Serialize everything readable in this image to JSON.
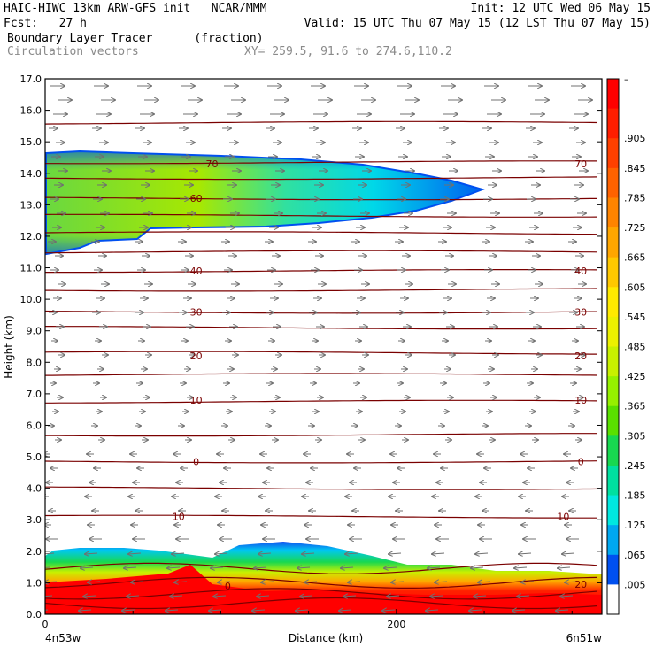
{
  "header": {
    "model_line": "HAIC-HIWC 13km ARW-GFS init   NCAR/MMM",
    "init_line": "Init: 12 UTC Wed 06 May 15",
    "fcst_line": "Fcst:   27 h",
    "valid_line": "Valid: 15 UTC Thu 07 May 15 (12 LST Thu 07 May 15)",
    "field_line": "Boundary Layer Tracer      (fraction)",
    "vector_line": "Circulation vectors",
    "xy_line": "XY= 259.5, 91.6 to 274.6,110.2"
  },
  "chart_data": {
    "type": "heatmap",
    "ylabel": "Height (km)",
    "xlabel": "Distance (km)",
    "x_left_label": "4n53w",
    "x_right_label": "6n51w",
    "xlim": [
      0,
      317
    ],
    "ylim": [
      0,
      17
    ],
    "x_ticks": [
      {
        "value": 0,
        "label": "0"
      },
      {
        "value": 200,
        "label": "200"
      }
    ],
    "y_ticks": [
      "0.0",
      "1.0",
      "2.0",
      "3.0",
      "4.0",
      "5.0",
      "6.0",
      "7.0",
      "8.0",
      "9.0",
      "10.0",
      "11.0",
      "12.0",
      "13.0",
      "14.0",
      "15.0",
      "16.0",
      "17.0"
    ],
    "colorbar": {
      "labels": [
        "–",
        ".905",
        ".845",
        ".785",
        ".725",
        ".665",
        ".605",
        ".545",
        ".485",
        ".425",
        ".365",
        ".305",
        ".245",
        ".185",
        ".125",
        ".065",
        ".005"
      ],
      "colors": [
        "#ff0000",
        "#ff1e00",
        "#ff4000",
        "#ff6200",
        "#ff8400",
        "#ffa600",
        "#ffc800",
        "#ffea00",
        "#ecf000",
        "#c8f000",
        "#96f000",
        "#5ae000",
        "#18d850",
        "#00e0a0",
        "#00e8e0",
        "#00a8f0",
        "#0050f0",
        "#ffffff"
      ]
    },
    "contour_labels": [
      {
        "label": "70",
        "x": 95,
        "y": 14.3
      },
      {
        "label": "70",
        "x": 305,
        "y": 14.3
      },
      {
        "label": "60",
        "x": 86,
        "y": 13.2
      },
      {
        "label": "40",
        "x": 86,
        "y": 10.9
      },
      {
        "label": "40",
        "x": 305,
        "y": 10.9
      },
      {
        "label": "30",
        "x": 86,
        "y": 9.6
      },
      {
        "label": "30",
        "x": 305,
        "y": 9.6
      },
      {
        "label": "20",
        "x": 86,
        "y": 8.2
      },
      {
        "label": "20",
        "x": 305,
        "y": 8.2
      },
      {
        "label": "10",
        "x": 86,
        "y": 6.8
      },
      {
        "label": "10",
        "x": 305,
        "y": 6.8
      },
      {
        "label": "0",
        "x": 86,
        "y": 4.85
      },
      {
        "label": "0",
        "x": 305,
        "y": 4.85
      },
      {
        "label": "10",
        "x": 76,
        "y": 3.1
      },
      {
        "label": "10",
        "x": 295,
        "y": 3.1
      },
      {
        "label": "0",
        "x": 104,
        "y": 0.9
      },
      {
        "label": "20",
        "x": 305,
        "y": 0.95
      }
    ],
    "contour_levels_km": [
      0.35,
      0.65,
      1.0,
      1.45,
      3.1,
      4.0,
      4.85,
      5.7,
      6.75,
      7.6,
      8.3,
      9.1,
      9.6,
      10.3,
      10.9,
      11.5,
      12.1,
      12.65,
      13.2,
      13.85,
      14.35,
      15.6
    ]
  }
}
